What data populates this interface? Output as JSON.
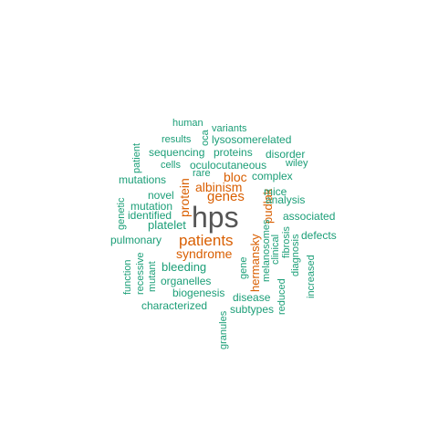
{
  "wordcloud": {
    "colors": {
      "green": "#1b9e77",
      "orange": "#d95f02",
      "gray": "#555555"
    },
    "words": [
      {
        "text": "hps",
        "weight": 1.0,
        "color": "gray"
      },
      {
        "text": "patients",
        "weight": 0.55,
        "color": "orange"
      },
      {
        "text": "genes",
        "weight": 0.47,
        "color": "orange"
      },
      {
        "text": "albinism",
        "weight": 0.45,
        "color": "orange"
      },
      {
        "text": "syndrome",
        "weight": 0.45,
        "color": "orange"
      },
      {
        "text": "bloc",
        "weight": 0.44,
        "color": "orange"
      },
      {
        "text": "protein",
        "weight": 0.44,
        "color": "orange"
      },
      {
        "text": "hermansky",
        "weight": 0.43,
        "color": "orange"
      },
      {
        "text": "pudlak",
        "weight": 0.43,
        "color": "orange"
      },
      {
        "text": "platelet",
        "weight": 0.4,
        "color": "green"
      },
      {
        "text": "bleeding",
        "weight": 0.4,
        "color": "green"
      },
      {
        "text": "oculocutaneous",
        "weight": 0.38,
        "color": "green"
      },
      {
        "text": "organelles",
        "weight": 0.37,
        "color": "green"
      },
      {
        "text": "biogenesis",
        "weight": 0.37,
        "color": "green"
      },
      {
        "text": "disease",
        "weight": 0.37,
        "color": "green"
      },
      {
        "text": "sequencing",
        "weight": 0.36,
        "color": "green"
      },
      {
        "text": "proteins",
        "weight": 0.36,
        "color": "green"
      },
      {
        "text": "complex",
        "weight": 0.36,
        "color": "green"
      },
      {
        "text": "mice",
        "weight": 0.36,
        "color": "green"
      },
      {
        "text": "analysis",
        "weight": 0.36,
        "color": "green"
      },
      {
        "text": "novel",
        "weight": 0.36,
        "color": "green"
      },
      {
        "text": "mutation",
        "weight": 0.35,
        "color": "green"
      },
      {
        "text": "identified",
        "weight": 0.35,
        "color": "green"
      },
      {
        "text": "pulmonary",
        "weight": 0.35,
        "color": "green"
      },
      {
        "text": "lysosomerelated",
        "weight": 0.35,
        "color": "green"
      },
      {
        "text": "disorder",
        "weight": 0.35,
        "color": "green"
      },
      {
        "text": "mutations",
        "weight": 0.34,
        "color": "green"
      },
      {
        "text": "associated",
        "weight": 0.34,
        "color": "green"
      },
      {
        "text": "defects",
        "weight": 0.34,
        "color": "green"
      },
      {
        "text": "characterized",
        "weight": 0.34,
        "color": "green"
      },
      {
        "text": "subtypes",
        "weight": 0.34,
        "color": "green"
      },
      {
        "text": "results",
        "weight": 0.33,
        "color": "green"
      },
      {
        "text": "cells",
        "weight": 0.33,
        "color": "green"
      },
      {
        "text": "variants",
        "weight": 0.33,
        "color": "green"
      },
      {
        "text": "human",
        "weight": 0.33,
        "color": "green"
      },
      {
        "text": "wiley",
        "weight": 0.32,
        "color": "green"
      },
      {
        "text": "rare",
        "weight": 0.32,
        "color": "green"
      },
      {
        "text": "oca",
        "weight": 0.32,
        "color": "green"
      },
      {
        "text": "patient",
        "weight": 0.32,
        "color": "green"
      },
      {
        "text": "genetic",
        "weight": 0.32,
        "color": "green"
      },
      {
        "text": "function",
        "weight": 0.32,
        "color": "green"
      },
      {
        "text": "recessive",
        "weight": 0.32,
        "color": "green"
      },
      {
        "text": "mutant",
        "weight": 0.32,
        "color": "green"
      },
      {
        "text": "gene",
        "weight": 0.32,
        "color": "green"
      },
      {
        "text": "melanosomes",
        "weight": 0.32,
        "color": "green"
      },
      {
        "text": "clinical",
        "weight": 0.32,
        "color": "green"
      },
      {
        "text": "fibrosis",
        "weight": 0.32,
        "color": "green"
      },
      {
        "text": "diagnosis",
        "weight": 0.32,
        "color": "green"
      },
      {
        "text": "increased",
        "weight": 0.32,
        "color": "green"
      },
      {
        "text": "reduced",
        "weight": 0.32,
        "color": "green"
      },
      {
        "text": "granules",
        "weight": 0.32,
        "color": "green"
      }
    ]
  }
}
